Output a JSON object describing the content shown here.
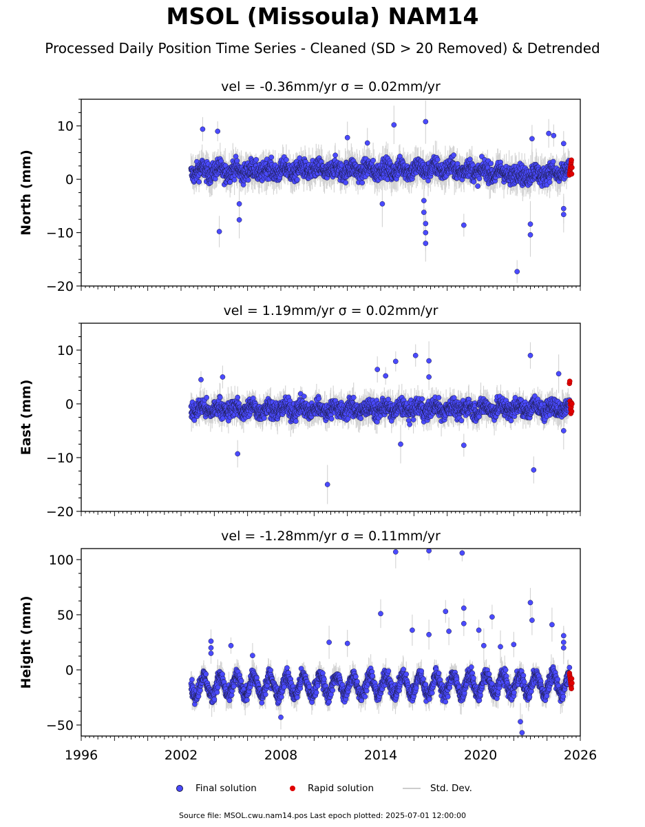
{
  "header": {
    "title": "MSOL (Missoula) NAM14",
    "subtitle": "Processed Daily Position Time Series - Cleaned (SD > 20 Removed) & Detrended"
  },
  "colors": {
    "final": "#4a4aff",
    "final_edge": "#1a1a40",
    "rapid": "#e00000",
    "stddev": "#c8c8c8",
    "axis": "#000000"
  },
  "chart_data": [
    {
      "type": "scatter",
      "title": "vel = -0.36mm/yr   σ = 0.02mm/yr",
      "ylabel": "North (mm)",
      "xlim": [
        1996,
        2026
      ],
      "ylim": [
        -20,
        15
      ],
      "yticks": [
        10,
        0,
        -10,
        -20
      ],
      "ytick_labels": [
        "10",
        "0",
        "−10",
        "−20"
      ],
      "xticks": [
        1996,
        2002,
        2008,
        2014,
        2020,
        2026
      ],
      "xtick_labels": [
        "",
        "",
        "",
        "",
        "",
        ""
      ],
      "final_start": 2002.6,
      "final_end": 2025.35,
      "rapid_start": 2025.35,
      "rapid_end": 2025.5,
      "baseline": 1.5,
      "baseline_drift": [
        [
          2002.6,
          1.5
        ],
        [
          2014,
          1.8
        ],
        [
          2018,
          2.0
        ],
        [
          2022.5,
          0.8
        ],
        [
          2025.4,
          1.3
        ]
      ],
      "spread": 1.6,
      "err": 2.5,
      "outliers": [
        [
          2003.3,
          9.4
        ],
        [
          2004.2,
          9.0
        ],
        [
          2004.3,
          -9.8
        ],
        [
          2005.5,
          -7.6
        ],
        [
          2005.5,
          -4.6
        ],
        [
          2012.0,
          7.8
        ],
        [
          2013.2,
          6.8
        ],
        [
          2014.1,
          -4.6
        ],
        [
          2014.8,
          10.2
        ],
        [
          2016.7,
          10.8
        ],
        [
          2016.7,
          -12.0
        ],
        [
          2016.7,
          -10.0
        ],
        [
          2016.7,
          -8.3
        ],
        [
          2016.6,
          -6.2
        ],
        [
          2016.6,
          -4.0
        ],
        [
          2019.0,
          -8.6
        ],
        [
          2022.2,
          -17.3
        ],
        [
          2023.0,
          -10.4
        ],
        [
          2023.0,
          -8.4
        ],
        [
          2023.1,
          7.6
        ],
        [
          2024.1,
          8.6
        ],
        [
          2024.4,
          8.2
        ],
        [
          2025.0,
          6.7
        ],
        [
          2025.0,
          -6.6
        ],
        [
          2025.0,
          -5.5
        ]
      ],
      "rapid_values": [
        0.8,
        1.2,
        1.6,
        2.0,
        2.4,
        2.8,
        3.2,
        3.6,
        1.0,
        2.2
      ]
    },
    {
      "type": "scatter",
      "title": "vel = 1.19mm/yr   σ = 0.02mm/yr",
      "ylabel": "East (mm)",
      "xlim": [
        1996,
        2026
      ],
      "ylim": [
        -20,
        15
      ],
      "yticks": [
        10,
        0,
        -10,
        -20
      ],
      "ytick_labels": [
        "10",
        "0",
        "−10",
        "−20"
      ],
      "xticks": [
        1996,
        2002,
        2008,
        2014,
        2020,
        2026
      ],
      "xtick_labels": [
        "",
        "",
        "",
        "",
        "",
        ""
      ],
      "final_start": 2002.6,
      "final_end": 2025.35,
      "rapid_start": 2025.35,
      "rapid_end": 2025.5,
      "baseline": -1.0,
      "baseline_drift": [
        [
          2002.6,
          -1.0
        ],
        [
          2014,
          -1.0
        ],
        [
          2025.4,
          -0.8
        ]
      ],
      "spread": 1.5,
      "err": 2.2,
      "outliers": [
        [
          2003.2,
          4.5
        ],
        [
          2004.5,
          5.0
        ],
        [
          2005.4,
          -9.3
        ],
        [
          2010.8,
          -15.0
        ],
        [
          2013.8,
          6.4
        ],
        [
          2014.3,
          5.2
        ],
        [
          2014.9,
          7.9
        ],
        [
          2015.2,
          -7.5
        ],
        [
          2016.1,
          9.0
        ],
        [
          2016.9,
          8.0
        ],
        [
          2016.9,
          5.0
        ],
        [
          2019.0,
          -7.7
        ],
        [
          2023.0,
          9.0
        ],
        [
          2023.2,
          -12.3
        ],
        [
          2024.7,
          5.6
        ],
        [
          2025.0,
          -5.0
        ]
      ],
      "rapid_values": [
        3.8,
        4.2,
        0.5,
        -0.2,
        -1.0,
        -1.8,
        -0.6,
        0.2,
        -1.4,
        0.0
      ]
    },
    {
      "type": "scatter",
      "title": "vel = -1.28mm/yr   σ = 0.11mm/yr",
      "ylabel": "Height (mm)",
      "xlabel": "",
      "xlim": [
        1996,
        2026
      ],
      "ylim": [
        -60,
        110
      ],
      "yticks": [
        100,
        50,
        0,
        -50
      ],
      "ytick_labels": [
        "100",
        "50",
        "0",
        "−50"
      ],
      "xticks": [
        1996,
        2002,
        2008,
        2014,
        2020,
        2026
      ],
      "xtick_labels": [
        "1996",
        "2002",
        "2008",
        "2014",
        "2020",
        "2026"
      ],
      "final_start": 2002.6,
      "final_end": 2025.35,
      "rapid_start": 2025.35,
      "rapid_end": 2025.5,
      "baseline": -15,
      "baseline_drift": [
        [
          2002.6,
          -15
        ],
        [
          2025.4,
          -13
        ]
      ],
      "seasonal_amp": 9,
      "spread": 6,
      "err": 10,
      "outliers": [
        [
          2003.8,
          26
        ],
        [
          2003.8,
          20
        ],
        [
          2003.8,
          15
        ],
        [
          2005.0,
          22
        ],
        [
          2006.3,
          13
        ],
        [
          2008.0,
          -43
        ],
        [
          2010.9,
          25
        ],
        [
          2012.0,
          24
        ],
        [
          2014.0,
          51
        ],
        [
          2014.9,
          107
        ],
        [
          2015.9,
          36
        ],
        [
          2016.9,
          108
        ],
        [
          2016.9,
          32
        ],
        [
          2017.9,
          53
        ],
        [
          2018.1,
          35
        ],
        [
          2018.9,
          106
        ],
        [
          2019.0,
          56
        ],
        [
          2019.0,
          42
        ],
        [
          2019.9,
          36
        ],
        [
          2020.2,
          22
        ],
        [
          2020.7,
          48
        ],
        [
          2021.2,
          21
        ],
        [
          2022.0,
          23
        ],
        [
          2022.4,
          -47
        ],
        [
          2022.5,
          -57
        ],
        [
          2023.0,
          61
        ],
        [
          2023.1,
          45
        ],
        [
          2024.3,
          41
        ],
        [
          2025.0,
          31
        ],
        [
          2025.0,
          25
        ],
        [
          2025.0,
          20
        ]
      ],
      "rapid_values": [
        -3,
        -5,
        -7,
        -9,
        -11,
        -13,
        -15,
        -17,
        -8,
        -12
      ]
    }
  ],
  "legend": {
    "final_label": "Final solution",
    "rapid_label": "Rapid solution",
    "stddev_label": "Std. Dev."
  },
  "footer": {
    "text": "Source file: MSOL.cwu.nam14.pos  Last epoch plotted: 2025-07-01 12:00:00"
  }
}
